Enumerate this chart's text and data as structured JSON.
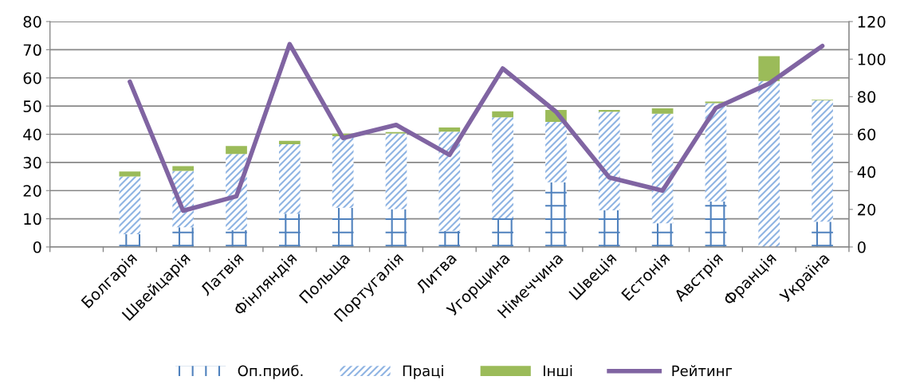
{
  "chart_data": {
    "type": "bar",
    "stacked": true,
    "categories": [
      null,
      "Болгарія",
      "Швейцарія",
      "Латвія",
      "Фінляндія",
      "Польща",
      "Португалія",
      "Литва",
      "Угорщина",
      "Німеччина",
      "Швеція",
      "Естонія",
      "Австрія",
      "Франція",
      "Україна"
    ],
    "series": [
      {
        "name": "Оп.приб.",
        "color": "#4f81bd",
        "values": [
          null,
          4.5,
          7,
          6,
          11.8,
          13.9,
          13.4,
          5.7,
          10.2,
          23,
          13,
          8.4,
          16.2,
          0,
          9
        ]
      },
      {
        "name": "Праці",
        "color": "#8fb4e3",
        "values": [
          null,
          20.5,
          20,
          27,
          24.7,
          25.4,
          26.9,
          35.2,
          35.8,
          21.4,
          35,
          38.9,
          34.8,
          58.9,
          43
        ]
      },
      {
        "name": "Інші",
        "color": "#9bbb59",
        "values": [
          null,
          1.8,
          1.7,
          2.8,
          1.2,
          0.9,
          0.5,
          1.5,
          2.1,
          4.2,
          0.6,
          1.9,
          0.6,
          8.8,
          0.2
        ]
      },
      {
        "name": "Рейтинг",
        "color": "#8064a2",
        "type": "line",
        "axis": "y2",
        "values": [
          null,
          88,
          19.3,
          27,
          108,
          58,
          65,
          49,
          95,
          72,
          37,
          30,
          74,
          87,
          107
        ]
      }
    ],
    "ylim": [
      0,
      80
    ],
    "yticks": [
      0,
      10,
      20,
      30,
      40,
      50,
      60,
      70,
      80
    ],
    "y2lim": [
      0,
      120
    ],
    "y2ticks": [
      0,
      20,
      40,
      60,
      80,
      100,
      120
    ],
    "grid": "y",
    "legend": "bottom",
    "marker": "none",
    "line_style": "solid"
  }
}
